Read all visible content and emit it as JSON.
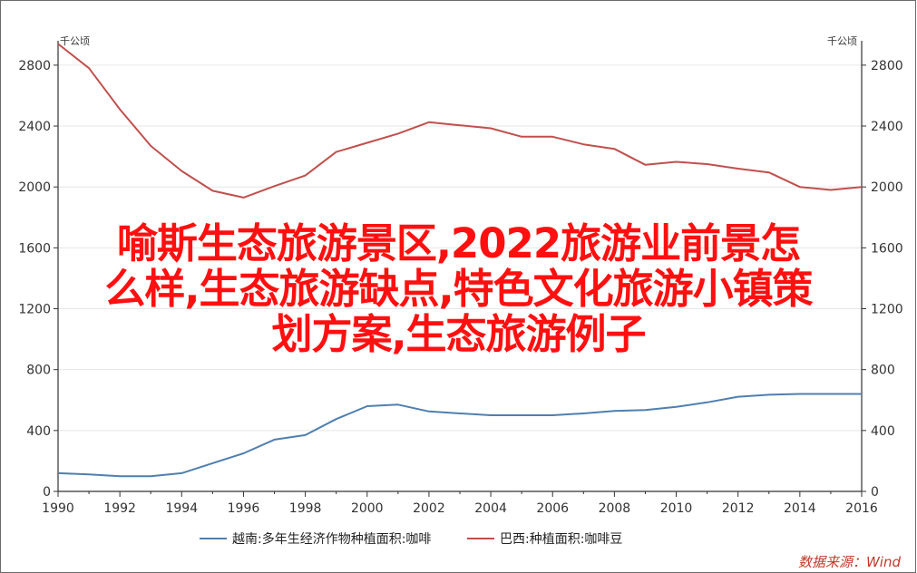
{
  "chart_data": {
    "type": "line",
    "x": [
      1990,
      1991,
      1992,
      1993,
      1994,
      1995,
      1996,
      1997,
      1998,
      1999,
      2000,
      2001,
      2002,
      2003,
      2004,
      2005,
      2006,
      2007,
      2008,
      2009,
      2010,
      2011,
      2012,
      2013,
      2014,
      2015,
      2016
    ],
    "xticks": [
      "1990",
      "1992",
      "1994",
      "1996",
      "1998",
      "2000",
      "2002",
      "2004",
      "2006",
      "2008",
      "2010",
      "2012",
      "2014",
      "2016"
    ],
    "yticks": [
      "0",
      "400",
      "800",
      "1200",
      "1600",
      "2000",
      "2400",
      "2800"
    ],
    "ylim": [
      0,
      2960
    ],
    "xlim": [
      1990,
      2016
    ],
    "unit_left": "千公顷",
    "unit_right": "千公顷",
    "grid": true,
    "legend_position": "bottom",
    "series": [
      {
        "name": "越南:多年生经济作物种植面积:咖啡",
        "color": "#4f7fb0",
        "values": [
          120,
          112,
          100,
          100,
          120,
          185,
          250,
          340,
          370,
          475,
          560,
          570,
          525,
          512,
          500,
          500,
          500,
          512,
          528,
          535,
          555,
          585,
          622,
          635,
          640,
          640,
          640
        ]
      },
      {
        "name": "巴西:种植面积:咖啡豆",
        "color": "#c0504d",
        "values": [
          2940,
          2780,
          2510,
          2270,
          2105,
          1975,
          1930,
          2005,
          2075,
          2230,
          2290,
          2350,
          2425,
          2405,
          2385,
          2330,
          2330,
          2280,
          2250,
          2145,
          2165,
          2150,
          2120,
          2095,
          2000,
          1980,
          2000
        ]
      }
    ]
  },
  "overlay_title": [
    "喻斯生态旅游景区,2022旅游业前景怎",
    "么样,生态旅游缺点,特色文化旅游小镇策",
    "划方案,生态旅游例子"
  ],
  "source_label": "数据来源：Wind"
}
